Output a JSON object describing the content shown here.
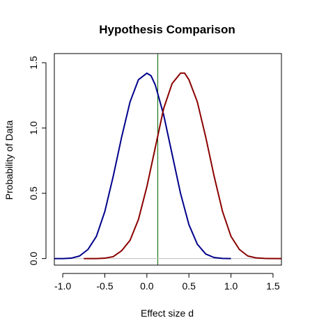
{
  "chart_data": {
    "type": "line",
    "title": "Hypothesis Comparison",
    "xlabel": "Effect size d",
    "ylabel": "Probability of Data",
    "xlim": [
      -1.1,
      1.6
    ],
    "ylim": [
      -0.05,
      1.57
    ],
    "x_ticks": [
      "-1.0",
      "-0.5",
      "0.0",
      "0.5",
      "1.0",
      "1.5"
    ],
    "x_tick_values": [
      -1.0,
      -0.5,
      0.0,
      0.5,
      1.0,
      1.5
    ],
    "y_ticks": [
      "0.0",
      "0.5",
      "1.0",
      "1.5"
    ],
    "y_tick_values": [
      0.0,
      0.5,
      1.0,
      1.5
    ],
    "grid": false,
    "series": [
      {
        "color": "#00008B",
        "x": [
          -1.1,
          -1.0,
          -0.9,
          -0.8,
          -0.7,
          -0.6,
          -0.5,
          -0.4,
          -0.3,
          -0.2,
          -0.1,
          0.0,
          0.05,
          0.1,
          0.2,
          0.3,
          0.4,
          0.5,
          0.6,
          0.7,
          0.8,
          0.9,
          1.0
        ],
        "y": [
          0.0,
          0.0,
          0.003,
          0.02,
          0.07,
          0.17,
          0.36,
          0.63,
          0.93,
          1.2,
          1.37,
          1.42,
          1.4,
          1.33,
          1.1,
          0.8,
          0.5,
          0.26,
          0.11,
          0.035,
          0.008,
          0.001,
          0.0
        ]
      },
      {
        "color": "#8B0000",
        "x": [
          -0.75,
          -0.6,
          -0.5,
          -0.4,
          -0.3,
          -0.2,
          -0.1,
          0.0,
          0.1,
          0.2,
          0.3,
          0.4,
          0.45,
          0.5,
          0.6,
          0.7,
          0.8,
          0.9,
          1.0,
          1.1,
          1.2,
          1.3,
          1.4,
          1.6
        ],
        "y": [
          0.0,
          0.0,
          0.003,
          0.015,
          0.06,
          0.14,
          0.3,
          0.55,
          0.85,
          1.15,
          1.34,
          1.42,
          1.42,
          1.37,
          1.2,
          0.93,
          0.63,
          0.36,
          0.17,
          0.07,
          0.02,
          0.005,
          0.001,
          0.0
        ]
      }
    ],
    "reference_lines": [
      {
        "orientation": "vertical",
        "x": 0.13,
        "color": "#006400"
      },
      {
        "orientation": "horizontal",
        "y": 0.0,
        "color": "#BEBEBE"
      }
    ]
  }
}
